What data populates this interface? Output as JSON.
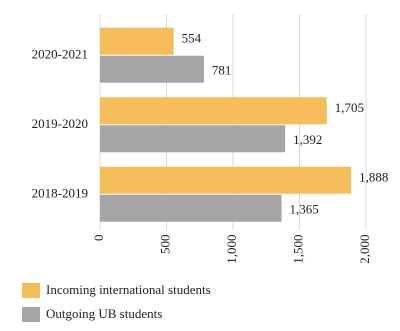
{
  "chart_data": {
    "type": "bar",
    "orientation": "horizontal",
    "categories": [
      "2020-2021",
      "2019-2020",
      "2018-2019"
    ],
    "series": [
      {
        "name": "Incoming international students",
        "color": "#f5bd5a",
        "values": [
          554,
          1705,
          1888
        ],
        "value_labels": [
          "554",
          "1,705",
          "1,888"
        ]
      },
      {
        "name": "Outgoing UB students",
        "color": "#a5a5a5",
        "values": [
          781,
          1392,
          1365
        ],
        "value_labels": [
          "781",
          "1,392",
          "1,365"
        ]
      }
    ],
    "xlim": [
      0,
      2000
    ],
    "xticks": [
      0,
      500,
      {
        "value": 1000,
        "label": "1,000"
      },
      {
        "value": 1500,
        "label": "1,500"
      },
      {
        "value": 2000,
        "label": "2,000"
      }
    ],
    "grid": true
  }
}
